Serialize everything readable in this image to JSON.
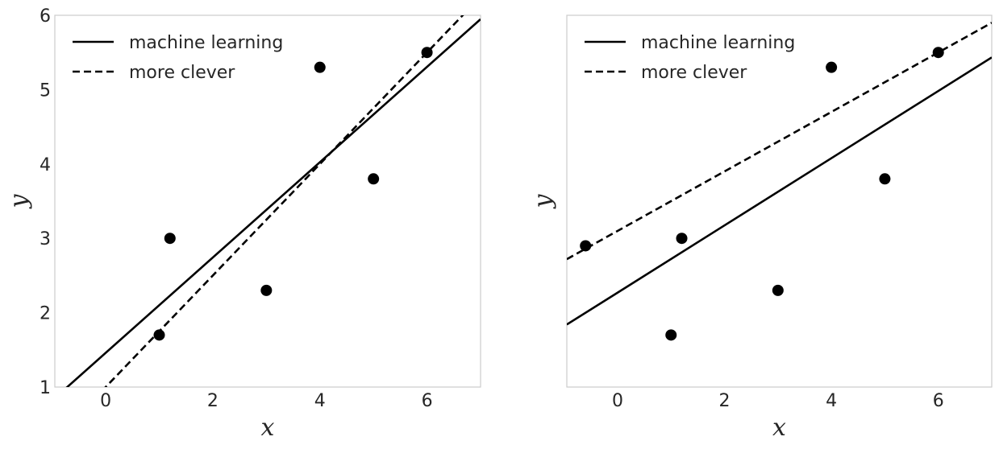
{
  "chart_data": [
    {
      "type": "scatter",
      "xlabel": "x",
      "ylabel": "y",
      "xlim": [
        -0.95,
        7.0
      ],
      "ylim": [
        1.0,
        6.0
      ],
      "xticks": [
        "0",
        "2",
        "4",
        "6"
      ],
      "xtick_values": [
        0,
        2,
        4,
        6
      ],
      "yticks": [
        "1",
        "2",
        "3",
        "4",
        "5",
        "6"
      ],
      "ytick_values": [
        1,
        2,
        3,
        4,
        5,
        6
      ],
      "grid": false,
      "legend_position": "top-left",
      "points": {
        "x": [
          1.0,
          1.2,
          3.0,
          4.0,
          5.0,
          6.0
        ],
        "y": [
          1.7,
          3.0,
          2.3,
          5.3,
          3.8,
          5.5
        ]
      },
      "lines": [
        {
          "name": "machine learning",
          "style": "solid",
          "slope": 0.641,
          "intercept": 1.46
        },
        {
          "name": "more clever",
          "style": "dashed",
          "slope": 0.75,
          "intercept": 1.0
        }
      ]
    },
    {
      "type": "scatter",
      "xlabel": "x",
      "ylabel": "y",
      "xlim": [
        -0.95,
        7.0
      ],
      "ylim": [
        1.0,
        6.0
      ],
      "xticks": [
        "0",
        "2",
        "4",
        "6"
      ],
      "xtick_values": [
        0,
        2,
        4,
        6
      ],
      "yticks": [],
      "ytick_values": [],
      "grid": false,
      "legend_position": "top-left",
      "points": {
        "x": [
          -0.6,
          1.0,
          1.2,
          3.0,
          4.0,
          5.0,
          6.0
        ],
        "y": [
          2.9,
          1.7,
          3.0,
          2.3,
          5.3,
          3.8,
          5.5
        ]
      },
      "lines": [
        {
          "name": "machine learning",
          "style": "solid",
          "slope": 0.452,
          "intercept": 2.27
        },
        {
          "name": "more clever",
          "style": "dashed",
          "slope": 0.4,
          "intercept": 3.1
        }
      ]
    }
  ]
}
